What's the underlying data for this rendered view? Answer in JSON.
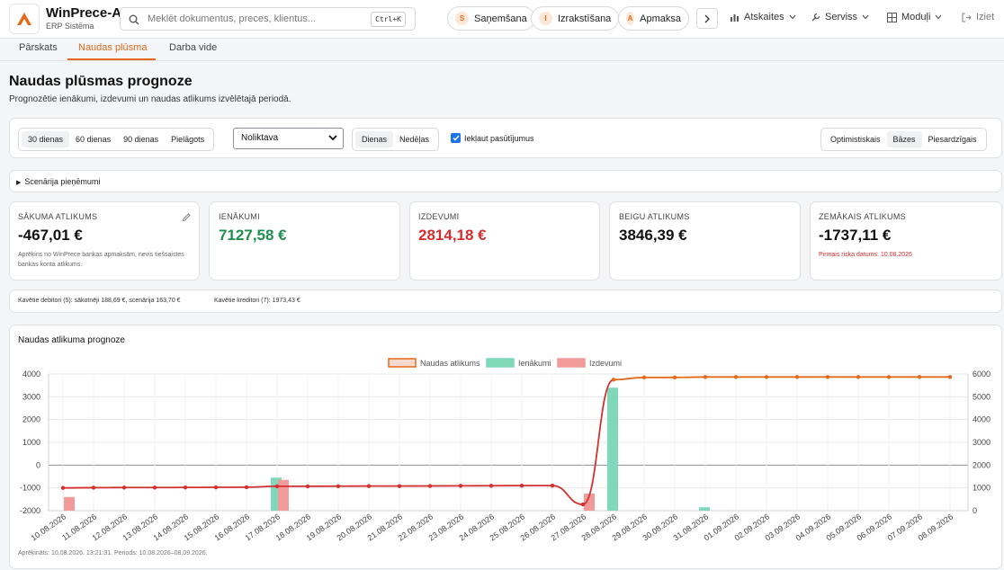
{
  "app": {
    "name": "WinPrece-A",
    "subtitle": "ERP Sistēma"
  },
  "search": {
    "placeholder": "Meklēt dokumentus, preces, klientus...",
    "shortcut": "Ctrl+K"
  },
  "quick_actions": [
    {
      "letter": "S",
      "label": "Saņemšana"
    },
    {
      "letter": "I",
      "label": "Izrakstīšana"
    },
    {
      "letter": "A",
      "label": "Apmaksa"
    }
  ],
  "menus": {
    "reports": "Atskaites",
    "service": "Serviss",
    "modules": "Moduļi",
    "logout": "Iziet"
  },
  "tabs": [
    "Pārskats",
    "Naudas plūsma",
    "Darba vide"
  ],
  "page": {
    "title": "Naudas plūsmas prognoze",
    "subtitle": "Prognozētie ienākumi, izdevumi un naudas atlikums izvēlētajā periodā."
  },
  "filters": {
    "periods": [
      "30 dienas",
      "60 dienas",
      "90 dienas",
      "Pielāgots"
    ],
    "warehouse": "Noliktava",
    "granularity": [
      "Dienas",
      "Nedēļas"
    ],
    "include_orders": "Iekļaut pasūtījumus",
    "scenarios": [
      "Optimistiskais",
      "Bāzes",
      "Piesardzīgais"
    ]
  },
  "scenario_assumptions": "Scenārija pieņēmumi",
  "kpis": [
    {
      "label": "SĀKUMA ATLIKUMS",
      "value": "-467,01 €",
      "note": "Aprēķins no WinPrece bankas apmaksām, nevis tiešsaistes bankas konta atlikums."
    },
    {
      "label": "IENĀKUMI",
      "value": "7127,58 €"
    },
    {
      "label": "IZDEVUMI",
      "value": "2814,18 €"
    },
    {
      "label": "BEIGU ATLIKUMS",
      "value": "3846,39 €"
    },
    {
      "label": "ZEMĀKAIS ATLIKUMS",
      "value": "-1737,11 €",
      "note": "Pirmais riska datums: 10.08.2026"
    }
  ],
  "colors": {
    "accent": "#e36a1c",
    "positive": "#1e8e4e",
    "negative": "#d32f2f",
    "income_bar": "#7fd8b8",
    "expense_bar": "#f29a9a"
  },
  "debtors": {
    "debitori": "Kavētie debitori (5): sākotnēji 188,69 €, scenārija 163,70 €",
    "kreditori": "Kavētie kreditori (7): 1973,43 €"
  },
  "chart_title": "Naudas atlikuma prognoze",
  "footnote": "Aprēķināts: 10.08.2026. 13:21:31. Periods: 10.08.2026–08.09.2026.",
  "chart_data": {
    "type": "line",
    "title": "Naudas atlikuma prognoze",
    "legend": [
      "Naudas atlikums",
      "Ienākumi",
      "Izdevumi"
    ],
    "legend_position": "top",
    "categories": [
      "10.08.2026",
      "11.08.2026",
      "12.08.2026",
      "13.08.2026",
      "14.08.2026",
      "15.08.2026",
      "16.08.2026",
      "17.08.2026",
      "18.08.2026",
      "19.08.2026",
      "20.08.2026",
      "21.08.2026",
      "22.08.2026",
      "23.08.2026",
      "24.08.2026",
      "25.08.2026",
      "26.08.2026",
      "27.08.2026",
      "28.08.2026",
      "29.08.2026",
      "30.08.2026",
      "31.08.2026",
      "01.09.2026",
      "02.09.2026",
      "03.09.2026",
      "04.09.2026",
      "05.09.2026",
      "06.09.2026",
      "07.09.2026",
      "08.09.2026"
    ],
    "series": [
      {
        "name": "Naudas atlikums",
        "axis": "left",
        "values": [
          -1000,
          -990,
          -985,
          -985,
          -980,
          -975,
          -970,
          -930,
          -930,
          -925,
          -920,
          -920,
          -915,
          -910,
          -905,
          -900,
          -900,
          -1725,
          3750,
          3850,
          3850,
          3870,
          3870,
          3870,
          3870,
          3870,
          3870,
          3870,
          3870,
          3870
        ]
      },
      {
        "name": "Ienākumi",
        "axis": "right",
        "values": [
          0,
          0,
          0,
          0,
          0,
          0,
          0,
          1450,
          0,
          0,
          0,
          0,
          0,
          0,
          0,
          0,
          0,
          0,
          5400,
          0,
          0,
          150,
          0,
          0,
          0,
          0,
          0,
          0,
          0,
          0
        ]
      },
      {
        "name": "Izdevumi",
        "axis": "right",
        "values": [
          600,
          0,
          0,
          0,
          0,
          0,
          0,
          1350,
          0,
          0,
          0,
          0,
          0,
          0,
          0,
          0,
          0,
          750,
          0,
          0,
          0,
          0,
          0,
          0,
          0,
          0,
          0,
          0,
          0,
          0
        ]
      }
    ],
    "y_left": {
      "min": -2000,
      "max": 4000,
      "ticks": [
        -2000,
        -1000,
        0,
        1000,
        2000,
        3000,
        4000
      ]
    },
    "y_right": {
      "min": 0,
      "max": 6000,
      "ticks": [
        0,
        1000,
        2000,
        3000,
        4000,
        5000,
        6000
      ]
    },
    "grid": true
  }
}
